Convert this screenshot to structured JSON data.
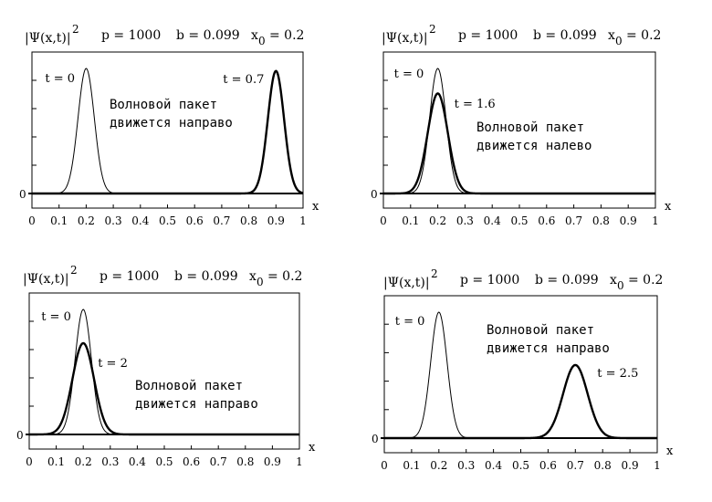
{
  "chart_data": [
    {
      "type": "line",
      "header": {
        "psi": "|Ψ(x,t)|",
        "sq": "2",
        "p": "p  = 1000",
        "b": "b  = 0.099",
        "x0": "x",
        "x0sub": "0",
        "x0val": "= 0.2"
      },
      "xlabel": "x",
      "xticks": [
        "0",
        "0.1",
        "0.2",
        "0.3",
        "0.4",
        "0.5",
        "0.6",
        "0.7",
        "0.8",
        "0.9",
        "1"
      ],
      "ytick": "0",
      "xlim": [
        0,
        1
      ],
      "ylim": [
        0,
        1.1
      ],
      "series": [
        {
          "center": 0.2,
          "sigma": 0.03,
          "amp": 1.0,
          "label": "t = 0",
          "bold": false
        },
        {
          "center": 0.9,
          "sigma": 0.03,
          "amp": 0.98,
          "label": "t = 0.7",
          "bold": true
        }
      ],
      "annotation": [
        "Волновой пакет",
        "движется направо"
      ]
    },
    {
      "type": "line",
      "header": {
        "psi": "|Ψ(x,t)|",
        "sq": "2",
        "p": "p  = 1000",
        "b": "b  = 0.099",
        "x0": "x",
        "x0sub": "0",
        "x0val": "= 0.2"
      },
      "xlabel": "x",
      "xticks": [
        "0",
        "0.1",
        "0.2",
        "0.3",
        "0.4",
        "0.5",
        "0.6",
        "0.7",
        "0.8",
        "0.9",
        "1"
      ],
      "ytick": "0",
      "xlim": [
        0,
        1
      ],
      "ylim": [
        0,
        1.1
      ],
      "series": [
        {
          "center": 0.2,
          "sigma": 0.03,
          "amp": 1.0,
          "label": "t = 0",
          "bold": false
        },
        {
          "center": 0.2,
          "sigma": 0.037,
          "amp": 0.8,
          "label": "t = 1.6",
          "bold": true
        }
      ],
      "annotation": [
        "Волновой пакет",
        "движется налево"
      ]
    },
    {
      "type": "line",
      "header": {
        "psi": "|Ψ(x,t)|",
        "sq": "2",
        "p": "p  = 1000",
        "b": "b  = 0.099",
        "x0": "x",
        "x0sub": "0",
        "x0val": "= 0.2"
      },
      "xlabel": "x",
      "xticks": [
        "0",
        "0.1",
        "0.2",
        "0.3",
        "0.4",
        "0.5",
        "0.6",
        "0.7",
        "0.8",
        "0.9",
        "1"
      ],
      "ytick": "0",
      "xlim": [
        0,
        1
      ],
      "ylim": [
        0,
        1.1
      ],
      "series": [
        {
          "center": 0.2,
          "sigma": 0.03,
          "amp": 1.0,
          "label": "t = 0",
          "bold": false
        },
        {
          "center": 0.2,
          "sigma": 0.04,
          "amp": 0.73,
          "label": "t = 2",
          "bold": true
        }
      ],
      "annotation": [
        "Волновой пакет",
        "движется направо"
      ]
    },
    {
      "type": "line",
      "header": {
        "psi": "|Ψ(x,t)|",
        "sq": "2",
        "p": "p  = 1000",
        "b": "b  = 0.099",
        "x0": "x",
        "x0sub": "0",
        "x0val": "= 0.2"
      },
      "xlabel": "x",
      "xticks": [
        "0",
        "0.1",
        "0.2",
        "0.3",
        "0.4",
        "0.5",
        "0.6",
        "0.7",
        "0.8",
        "0.9",
        "1"
      ],
      "ytick": "0",
      "xlim": [
        0,
        1
      ],
      "ylim": [
        0,
        1.1
      ],
      "series": [
        {
          "center": 0.2,
          "sigma": 0.03,
          "amp": 1.0,
          "label": "t = 0",
          "bold": false
        },
        {
          "center": 0.7,
          "sigma": 0.045,
          "amp": 0.58,
          "label": "t = 2.5",
          "bold": true
        }
      ],
      "annotation": [
        "Волновой пакет",
        "движется направо"
      ]
    }
  ]
}
